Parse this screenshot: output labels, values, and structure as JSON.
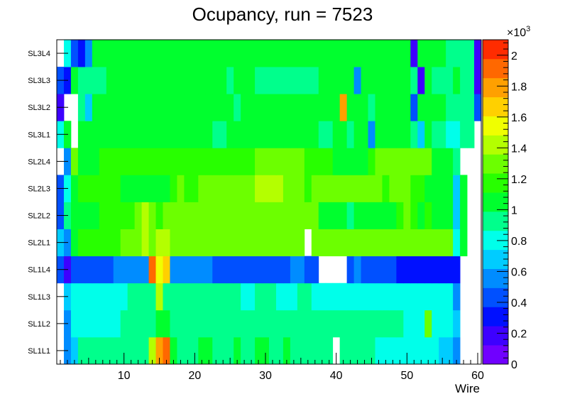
{
  "chart_data": {
    "type": "heatmap",
    "title": "Ocupancy, run = 7523",
    "xlabel": "Wire",
    "ylabel": "",
    "xlim": [
      0.5,
      60.5
    ],
    "x_ticks": [
      10,
      20,
      30,
      40,
      50,
      60
    ],
    "y_categories": [
      "SL1L1",
      "SL1L2",
      "SL1L3",
      "SL1L4",
      "SL2L1",
      "SL2L2",
      "SL2L3",
      "SL2L4",
      "SL3L1",
      "SL3L2",
      "SL3L3",
      "SL3L4"
    ],
    "z_range": [
      0,
      2100
    ],
    "z_ticks": [
      0,
      200,
      400,
      600,
      800,
      1000,
      1200,
      1400,
      1600,
      1800,
      2000
    ],
    "z_tick_labels": [
      "0",
      "0.2",
      "0.4",
      "0.6",
      "0.8",
      "1",
      "1.2",
      "1.4",
      "1.6",
      "1.8",
      "2"
    ],
    "z_multiplier_label": "×10",
    "z_multiplier_exponent": "3",
    "values": [
      [
        null,
        610,
        730,
        880,
        880,
        900,
        900,
        920,
        930,
        960,
        940,
        960,
        980,
        1450,
        1850,
        1870,
        1000,
        980,
        960,
        980,
        1000,
        1000,
        980,
        960,
        980,
        1000,
        960,
        980,
        1000,
        1000,
        960,
        980,
        1000,
        960,
        940,
        960,
        960,
        920,
        940,
        null,
        900,
        880,
        880,
        880,
        880,
        860,
        860,
        860,
        760,
        780,
        760,
        780,
        800,
        760,
        740,
        620,
        600,
        null,
        null,
        null
      ],
      [
        null,
        610,
        780,
        850,
        850,
        860,
        860,
        860,
        860,
        920,
        940,
        960,
        980,
        960,
        1020,
        1020,
        960,
        940,
        940,
        960,
        960,
        960,
        940,
        920,
        920,
        900,
        900,
        920,
        940,
        940,
        920,
        900,
        900,
        920,
        940,
        900,
        900,
        900,
        900,
        880,
        880,
        880,
        900,
        920,
        920,
        900,
        900,
        880,
        880,
        860,
        860,
        860,
        1350,
        860,
        760,
        820,
        650,
        null,
        null,
        null
      ],
      [
        null,
        640,
        780,
        800,
        800,
        820,
        820,
        830,
        830,
        860,
        880,
        900,
        920,
        960,
        1400,
        960,
        900,
        880,
        880,
        900,
        900,
        900,
        900,
        880,
        880,
        880,
        860,
        860,
        880,
        880,
        880,
        860,
        860,
        860,
        880,
        880,
        860,
        860,
        860,
        860,
        860,
        840,
        860,
        860,
        860,
        860,
        860,
        860,
        760,
        760,
        760,
        760,
        800,
        800,
        760,
        760,
        600,
        null,
        null,
        null
      ],
      [
        400,
        200,
        380,
        450,
        450,
        450,
        450,
        450,
        550,
        550,
        550,
        550,
        550,
        1880,
        1550,
        1700,
        560,
        500,
        500,
        500,
        600,
        600,
        450,
        450,
        450,
        450,
        450,
        450,
        450,
        450,
        450,
        450,
        450,
        600,
        600,
        450,
        450,
        null,
        null,
        null,
        null,
        450,
        580,
        480,
        480,
        480,
        480,
        480,
        270,
        270,
        270,
        270,
        270,
        270,
        270,
        250,
        360,
        null,
        null,
        null
      ],
      [
        700,
        540,
        1100,
        1120,
        1120,
        1150,
        1150,
        1200,
        1200,
        1250,
        1300,
        1350,
        1400,
        1350,
        1400,
        1400,
        1320,
        1320,
        1300,
        1280,
        1300,
        1300,
        1300,
        1300,
        1320,
        1320,
        1300,
        1300,
        1320,
        1320,
        1300,
        1320,
        1320,
        1340,
        1340,
        null,
        1340,
        1300,
        1300,
        1340,
        1300,
        1300,
        1300,
        1300,
        1320,
        1320,
        1320,
        1320,
        1320,
        1320,
        1320,
        1300,
        1300,
        1300,
        1300,
        1300,
        760,
        1000,
        null,
        null
      ],
      [
        400,
        900,
        1100,
        1100,
        1100,
        1100,
        1150,
        1200,
        1200,
        1150,
        1200,
        1300,
        1400,
        1350,
        1200,
        1300,
        1350,
        1340,
        1340,
        1320,
        1300,
        1300,
        1300,
        1300,
        1320,
        1300,
        1300,
        1320,
        1340,
        1340,
        1300,
        1300,
        1300,
        1280,
        1300,
        1320,
        1350,
        1100,
        1100,
        1100,
        1000,
        950,
        1000,
        1050,
        1050,
        1100,
        1100,
        1100,
        1200,
        1250,
        1200,
        1100,
        1150,
        1100,
        1000,
        1050,
        660,
        1100,
        null,
        null
      ],
      [
        400,
        800,
        1100,
        1120,
        1120,
        1120,
        1120,
        1150,
        1150,
        1100,
        1080,
        1060,
        1040,
        1040,
        1080,
        1080,
        1200,
        1300,
        1200,
        1150,
        1300,
        1300,
        1350,
        1300,
        1350,
        1300,
        1300,
        1350,
        1400,
        1400,
        1400,
        1400,
        1350,
        1340,
        1340,
        1200,
        1340,
        1300,
        1300,
        1300,
        1300,
        1300,
        1300,
        1300,
        1300,
        1320,
        1200,
        1340,
        1340,
        1340,
        1200,
        1150,
        1100,
        1100,
        1080,
        1050,
        640,
        1100,
        null,
        null
      ],
      [
        null,
        540,
        1300,
        1100,
        1100,
        1100,
        1150,
        1150,
        1200,
        1200,
        1200,
        1200,
        1200,
        1200,
        1200,
        1200,
        1200,
        1200,
        1200,
        1200,
        1200,
        1150,
        1150,
        1200,
        1200,
        1200,
        1200,
        1200,
        1250,
        1250,
        1250,
        1250,
        1250,
        1250,
        1250,
        1200,
        1200,
        1200,
        1200,
        1100,
        1100,
        1100,
        1100,
        1100,
        1150,
        1250,
        1300,
        1300,
        1300,
        1300,
        1300,
        1300,
        1300,
        1100,
        1000,
        1000,
        950,
        null,
        null,
        null
      ],
      [
        800,
        1000,
        null,
        1000,
        1050,
        1050,
        1080,
        1080,
        1100,
        1080,
        1080,
        1080,
        1100,
        1100,
        1100,
        1100,
        1080,
        1080,
        1080,
        1080,
        1080,
        1080,
        950,
        950,
        1000,
        1000,
        1000,
        1000,
        1080,
        1080,
        1080,
        1100,
        1080,
        1000,
        1000,
        1080,
        1000,
        980,
        980,
        1080,
        1000,
        980,
        1000,
        1050,
        600,
        1000,
        1000,
        1000,
        1000,
        1000,
        950,
        700,
        1000,
        950,
        900,
        850,
        800,
        900,
        900,
        null
      ],
      [
        200,
        null,
        null,
        920,
        640,
        1080,
        1080,
        1080,
        1080,
        1080,
        1080,
        1080,
        1080,
        1100,
        1100,
        1100,
        1100,
        1080,
        1080,
        1080,
        1080,
        1080,
        1100,
        1100,
        1050,
        900,
        1000,
        1000,
        1080,
        1080,
        1080,
        1080,
        1080,
        1080,
        1080,
        1080,
        1080,
        1050,
        1080,
        1000,
        1850,
        1050,
        1000,
        1000,
        950,
        1050,
        1100,
        1050,
        1050,
        1050,
        400,
        1000,
        1050,
        1000,
        1000,
        950,
        900,
        950,
        950,
        400
      ],
      [
        400,
        300,
        1000,
        980,
        980,
        980,
        980,
        1000,
        1000,
        1000,
        1000,
        1000,
        1000,
        1000,
        1000,
        1000,
        1000,
        1000,
        1000,
        1000,
        1000,
        1000,
        1000,
        1000,
        950,
        1000,
        1000,
        1000,
        980,
        980,
        980,
        950,
        950,
        980,
        980,
        980,
        980,
        1000,
        1000,
        1000,
        1000,
        1000,
        600,
        1000,
        1000,
        1000,
        1000,
        1000,
        1000,
        1000,
        950,
        200,
        1000,
        950,
        950,
        950,
        1000,
        950,
        950,
        200
      ],
      [
        null,
        800,
        400,
        250,
        600,
        1050,
        1050,
        1000,
        1050,
        1050,
        1050,
        1050,
        1080,
        1050,
        1080,
        1080,
        1080,
        1050,
        1050,
        1050,
        1050,
        1050,
        1050,
        1050,
        1000,
        1000,
        1000,
        1080,
        1080,
        1080,
        1080,
        1050,
        1050,
        1050,
        1050,
        1050,
        1050,
        1050,
        1050,
        1100,
        1050,
        1050,
        1050,
        1050,
        1050,
        1050,
        1050,
        1050,
        1050,
        1050,
        150,
        1050,
        1050,
        1000,
        1000,
        950,
        950,
        950,
        950,
        200
      ]
    ]
  }
}
